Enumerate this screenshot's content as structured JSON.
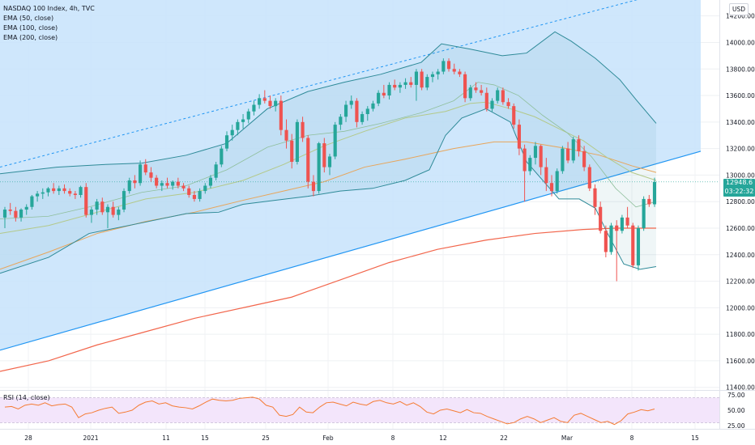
{
  "header": {
    "title": "NASDAQ 100 Index, 4h, TVC",
    "indicators": [
      "EMA (50, close)",
      "EMA (100, close)",
      "EMA (200, close)"
    ],
    "currency": "USD"
  },
  "last_price": {
    "value": "12948.6",
    "countdown": "03:22:32"
  },
  "rsi": {
    "label": "RSI (14, close)"
  },
  "colors": {
    "up": "#26a69a",
    "down": "#ef5350",
    "channel_fill": "#c7e3fb",
    "band_line": "#2e8a98",
    "ema50": "#b3c98a",
    "ema100": "#e8a55a",
    "ema200": "#f2664c",
    "trendline": "#2196f3",
    "rsi_line": "#f57c34",
    "rsi_band": "#f3e5fb"
  },
  "chart_data": {
    "type": "candlestick",
    "y_axis": {
      "range": [
        11380,
        14320
      ],
      "ticks": [
        "11400.00",
        "11600.00",
        "11800.00",
        "12000.00",
        "12200.00",
        "12400.00",
        "12600.00",
        "12800.00",
        "13000.00",
        "13200.00",
        "13400.00",
        "13600.00",
        "13800.00",
        "14000.00",
        "14200.00"
      ]
    },
    "x_axis": {
      "tick_labels": [
        "28",
        "2021",
        "11",
        "15",
        "25",
        "Feb",
        "8",
        "12",
        "22",
        "Mar",
        "8",
        "15"
      ]
    },
    "rsi_axis": {
      "range": [
        20,
        80
      ],
      "ticks": [
        "75.00",
        "50.00",
        "25.00"
      ],
      "band": [
        30,
        70
      ]
    },
    "candles": [
      [
        12680,
        12760,
        12600,
        12740
      ],
      [
        12740,
        12790,
        12700,
        12730
      ],
      [
        12730,
        12760,
        12650,
        12680
      ],
      [
        12680,
        12750,
        12650,
        12740
      ],
      [
        12740,
        12780,
        12700,
        12760
      ],
      [
        12760,
        12850,
        12740,
        12840
      ],
      [
        12840,
        12880,
        12800,
        12860
      ],
      [
        12860,
        12900,
        12820,
        12870
      ],
      [
        12870,
        12910,
        12840,
        12900
      ],
      [
        12900,
        12940,
        12860,
        12880
      ],
      [
        12880,
        12920,
        12850,
        12900
      ],
      [
        12900,
        12930,
        12860,
        12880
      ],
      [
        12880,
        12900,
        12840,
        12860
      ],
      [
        12860,
        12880,
        12820,
        12850
      ],
      [
        12850,
        12920,
        12830,
        12910
      ],
      [
        12910,
        12940,
        12680,
        12700
      ],
      [
        12700,
        12760,
        12640,
        12740
      ],
      [
        12740,
        12820,
        12700,
        12800
      ],
      [
        12800,
        12830,
        12700,
        12720
      ],
      [
        12720,
        12780,
        12600,
        12760
      ],
      [
        12760,
        12800,
        12680,
        12700
      ],
      [
        12700,
        12760,
        12660,
        12740
      ],
      [
        12740,
        12900,
        12720,
        12880
      ],
      [
        12880,
        12980,
        12860,
        12960
      ],
      [
        12960,
        13000,
        12900,
        12940
      ],
      [
        12940,
        13110,
        12920,
        13080
      ],
      [
        13080,
        13120,
        13000,
        13020
      ],
      [
        13020,
        13060,
        12950,
        12980
      ],
      [
        12980,
        13000,
        12900,
        12920
      ],
      [
        12920,
        12960,
        12880,
        12940
      ],
      [
        12940,
        12980,
        12900,
        12920
      ],
      [
        12920,
        12960,
        12890,
        12950
      ],
      [
        12950,
        12980,
        12900,
        12920
      ],
      [
        12920,
        12940,
        12880,
        12900
      ],
      [
        12900,
        12920,
        12830,
        12850
      ],
      [
        12850,
        12880,
        12800,
        12820
      ],
      [
        12820,
        12900,
        12800,
        12880
      ],
      [
        12880,
        12940,
        12860,
        12920
      ],
      [
        12920,
        13000,
        12900,
        12980
      ],
      [
        12980,
        13100,
        12960,
        13080
      ],
      [
        13080,
        13220,
        13060,
        13200
      ],
      [
        13200,
        13330,
        13180,
        13300
      ],
      [
        13300,
        13380,
        13260,
        13340
      ],
      [
        13340,
        13420,
        13300,
        13400
      ],
      [
        13400,
        13460,
        13350,
        13420
      ],
      [
        13420,
        13500,
        13390,
        13480
      ],
      [
        13480,
        13560,
        13450,
        13530
      ],
      [
        13530,
        13610,
        13500,
        13580
      ],
      [
        13580,
        13640,
        13540,
        13560
      ],
      [
        13560,
        13600,
        13500,
        13520
      ],
      [
        13520,
        13580,
        13480,
        13560
      ],
      [
        13560,
        13600,
        13300,
        13340
      ],
      [
        13340,
        13420,
        13200,
        13260
      ],
      [
        13260,
        13310,
        13050,
        13100
      ],
      [
        13100,
        13420,
        13080,
        13400
      ],
      [
        13400,
        13440,
        13250,
        13280
      ],
      [
        13280,
        13300,
        12900,
        12950
      ],
      [
        12950,
        13000,
        12840,
        12880
      ],
      [
        12880,
        13250,
        12860,
        13240
      ],
      [
        13240,
        13280,
        13020,
        13060
      ],
      [
        13060,
        13160,
        13000,
        13140
      ],
      [
        13140,
        13400,
        13120,
        13380
      ],
      [
        13380,
        13460,
        13340,
        13440
      ],
      [
        13440,
        13560,
        13400,
        13530
      ],
      [
        13530,
        13600,
        13500,
        13560
      ],
      [
        13560,
        13580,
        13360,
        13400
      ],
      [
        13400,
        13480,
        13380,
        13460
      ],
      [
        13460,
        13520,
        13410,
        13500
      ],
      [
        13500,
        13560,
        13480,
        13540
      ],
      [
        13540,
        13640,
        13520,
        13620
      ],
      [
        13620,
        13680,
        13580,
        13600
      ],
      [
        13600,
        13700,
        13570,
        13680
      ],
      [
        13680,
        13720,
        13640,
        13660
      ],
      [
        13660,
        13700,
        13620,
        13680
      ],
      [
        13680,
        13730,
        13650,
        13700
      ],
      [
        13700,
        13740,
        13660,
        13680
      ],
      [
        13680,
        13800,
        13560,
        13780
      ],
      [
        13780,
        13800,
        13640,
        13660
      ],
      [
        13660,
        13760,
        13640,
        13740
      ],
      [
        13740,
        13780,
        13700,
        13760
      ],
      [
        13760,
        13800,
        13720,
        13780
      ],
      [
        13780,
        13880,
        13760,
        13860
      ],
      [
        13860,
        13880,
        13780,
        13800
      ],
      [
        13800,
        13840,
        13760,
        13780
      ],
      [
        13780,
        13800,
        13740,
        13760
      ],
      [
        13760,
        13780,
        13550,
        13580
      ],
      [
        13580,
        13680,
        13560,
        13660
      ],
      [
        13660,
        13700,
        13620,
        13640
      ],
      [
        13640,
        13680,
        13600,
        13620
      ],
      [
        13620,
        13660,
        13480,
        13500
      ],
      [
        13500,
        13580,
        13480,
        13560
      ],
      [
        13560,
        13660,
        13540,
        13640
      ],
      [
        13640,
        13660,
        13530,
        13550
      ],
      [
        13550,
        13580,
        13500,
        13520
      ],
      [
        13520,
        13540,
        13350,
        13380
      ],
      [
        13380,
        13420,
        13150,
        13200
      ],
      [
        13200,
        13230,
        12800,
        13030
      ],
      [
        13030,
        13150,
        13000,
        13130
      ],
      [
        13130,
        13250,
        13080,
        13220
      ],
      [
        13220,
        13230,
        13000,
        13060
      ],
      [
        13060,
        13130,
        12880,
        12940
      ],
      [
        12940,
        13000,
        12840,
        12880
      ],
      [
        12880,
        13050,
        12860,
        13030
      ],
      [
        13030,
        13220,
        13010,
        13200
      ],
      [
        13200,
        13250,
        13090,
        13110
      ],
      [
        13110,
        13290,
        13090,
        13270
      ],
      [
        13270,
        13300,
        13140,
        13180
      ],
      [
        13180,
        13220,
        13030,
        13060
      ],
      [
        13060,
        13080,
        12880,
        12900
      ],
      [
        12900,
        12930,
        12700,
        12760
      ],
      [
        12760,
        12800,
        12560,
        12580
      ],
      [
        12580,
        12620,
        12380,
        12420
      ],
      [
        12420,
        12640,
        12400,
        12620
      ],
      [
        12620,
        12660,
        12200,
        12580
      ],
      [
        12580,
        12700,
        12560,
        12680
      ],
      [
        12680,
        12760,
        12600,
        12620
      ],
      [
        12620,
        12640,
        12300,
        12320
      ],
      [
        12320,
        12620,
        12280,
        12600
      ],
      [
        12600,
        12840,
        12580,
        12820
      ],
      [
        12820,
        12850,
        12760,
        12780
      ],
      [
        12780,
        12980,
        12760,
        12948.6
      ]
    ],
    "bollinger_upper": [
      [
        0,
        13010
      ],
      [
        70,
        13060
      ],
      [
        130,
        13080
      ],
      [
        175,
        13090
      ],
      [
        230,
        13150
      ],
      [
        280,
        13240
      ],
      [
        330,
        13500
      ],
      [
        380,
        13630
      ],
      [
        425,
        13700
      ],
      [
        470,
        13760
      ],
      [
        520,
        13850
      ],
      [
        545,
        13990
      ],
      [
        580,
        13950
      ],
      [
        620,
        13900
      ],
      [
        650,
        13920
      ],
      [
        685,
        14080
      ],
      [
        705,
        14010
      ],
      [
        735,
        13880
      ],
      [
        765,
        13720
      ],
      [
        785,
        13570
      ],
      [
        810,
        13390
      ]
    ],
    "bollinger_lower": [
      [
        0,
        12260
      ],
      [
        60,
        12380
      ],
      [
        110,
        12560
      ],
      [
        175,
        12640
      ],
      [
        230,
        12710
      ],
      [
        270,
        12720
      ],
      [
        300,
        12780
      ],
      [
        340,
        12810
      ],
      [
        380,
        12840
      ],
      [
        420,
        12880
      ],
      [
        460,
        12900
      ],
      [
        500,
        12960
      ],
      [
        530,
        13040
      ],
      [
        550,
        13300
      ],
      [
        570,
        13430
      ],
      [
        600,
        13500
      ],
      [
        630,
        13400
      ],
      [
        650,
        13100
      ],
      [
        690,
        12820
      ],
      [
        715,
        12820
      ],
      [
        735,
        12750
      ],
      [
        750,
        12560
      ],
      [
        770,
        12330
      ],
      [
        790,
        12290
      ],
      [
        810,
        12310
      ]
    ],
    "bollinger_mid": [
      [
        0,
        12670
      ],
      [
        60,
        12690
      ],
      [
        110,
        12760
      ],
      [
        175,
        12870
      ],
      [
        230,
        12920
      ],
      [
        280,
        13040
      ],
      [
        330,
        13210
      ],
      [
        380,
        13300
      ],
      [
        425,
        13330
      ],
      [
        470,
        13390
      ],
      [
        520,
        13470
      ],
      [
        560,
        13560
      ],
      [
        590,
        13700
      ],
      [
        610,
        13680
      ],
      [
        640,
        13600
      ],
      [
        670,
        13450
      ],
      [
        700,
        13320
      ],
      [
        730,
        13140
      ],
      [
        760,
        12900
      ],
      [
        785,
        12760
      ],
      [
        810,
        12800
      ]
    ],
    "ema50": [
      [
        0,
        12560
      ],
      [
        60,
        12620
      ],
      [
        120,
        12720
      ],
      [
        180,
        12820
      ],
      [
        240,
        12870
      ],
      [
        300,
        12960
      ],
      [
        350,
        13080
      ],
      [
        400,
        13220
      ],
      [
        450,
        13330
      ],
      [
        500,
        13430
      ],
      [
        550,
        13480
      ],
      [
        580,
        13540
      ],
      [
        600,
        13550
      ],
      [
        630,
        13500
      ],
      [
        660,
        13440
      ],
      [
        690,
        13350
      ],
      [
        720,
        13260
      ],
      [
        750,
        13130
      ],
      [
        780,
        13020
      ],
      [
        810,
        12960
      ]
    ],
    "ema100": [
      [
        0,
        12290
      ],
      [
        60,
        12420
      ],
      [
        120,
        12560
      ],
      [
        180,
        12650
      ],
      [
        240,
        12720
      ],
      [
        300,
        12810
      ],
      [
        350,
        12880
      ],
      [
        400,
        12950
      ],
      [
        450,
        13060
      ],
      [
        500,
        13120
      ],
      [
        560,
        13200
      ],
      [
        610,
        13250
      ],
      [
        650,
        13250
      ],
      [
        700,
        13200
      ],
      [
        740,
        13150
      ],
      [
        780,
        13070
      ],
      [
        810,
        13020
      ]
    ],
    "ema200": [
      [
        0,
        11520
      ],
      [
        60,
        11600
      ],
      [
        120,
        11720
      ],
      [
        180,
        11820
      ],
      [
        240,
        11920
      ],
      [
        300,
        12000
      ],
      [
        360,
        12080
      ],
      [
        420,
        12210
      ],
      [
        480,
        12340
      ],
      [
        540,
        12440
      ],
      [
        600,
        12510
      ],
      [
        660,
        12560
      ],
      [
        720,
        12590
      ],
      [
        760,
        12600
      ],
      [
        810,
        12600
      ]
    ],
    "channel": {
      "upper": [
        [
          0,
          13060
        ],
        [
          810,
          14360
        ]
      ],
      "lower": [
        [
          0,
          11680
        ],
        [
          865,
          13180
        ]
      ],
      "lower_edge_x": 865
    },
    "rsi": [
      55,
      56,
      52,
      58,
      60,
      58,
      62,
      57,
      59,
      60,
      55,
      38,
      44,
      46,
      50,
      53,
      55,
      45,
      47,
      50,
      58,
      63,
      65,
      60,
      62,
      57,
      55,
      54,
      52,
      57,
      63,
      68,
      66,
      65,
      66,
      69,
      70,
      71,
      68,
      58,
      55,
      42,
      40,
      43,
      55,
      47,
      46,
      55,
      62,
      63,
      60,
      57,
      63,
      60,
      58,
      64,
      66,
      62,
      60,
      64,
      58,
      62,
      56,
      47,
      44,
      50,
      52,
      49,
      46,
      51,
      46,
      45,
      40,
      36,
      32,
      28,
      30,
      36,
      40,
      36,
      30,
      34,
      38,
      32,
      30,
      42,
      45,
      40,
      35,
      30,
      32,
      27,
      33,
      44,
      47,
      51,
      49,
      52
    ]
  }
}
